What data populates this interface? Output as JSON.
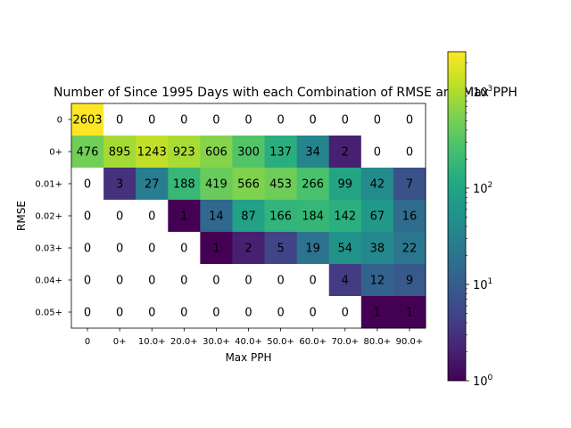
{
  "chart_data": {
    "type": "heatmap",
    "title": "Number of Since 1995 Days with each Combination of RMSE and Max PPH",
    "xlabel": "Max PPH",
    "ylabel": "RMSE",
    "x_categories": [
      "0",
      "0+",
      "10.0+",
      "20.0+",
      "30.0+",
      "40.0+",
      "50.0+",
      "60.0+",
      "70.0+",
      "80.0+",
      "90.0+"
    ],
    "y_categories": [
      "0",
      "0+",
      "0.01+",
      "0.02+",
      "0.03+",
      "0.04+",
      "0.05+"
    ],
    "values": [
      [
        2603,
        0,
        0,
        0,
        0,
        0,
        0,
        0,
        0,
        0,
        0
      ],
      [
        476,
        895,
        1243,
        923,
        606,
        300,
        137,
        34,
        2,
        0,
        0
      ],
      [
        0,
        3,
        27,
        188,
        419,
        566,
        453,
        266,
        99,
        42,
        7
      ],
      [
        0,
        0,
        0,
        1,
        14,
        87,
        166,
        184,
        142,
        67,
        16
      ],
      [
        0,
        0,
        0,
        0,
        1,
        2,
        5,
        19,
        54,
        38,
        22
      ],
      [
        0,
        0,
        0,
        0,
        0,
        0,
        0,
        0,
        4,
        12,
        9
      ],
      [
        0,
        0,
        0,
        0,
        0,
        0,
        0,
        0,
        0,
        1,
        1
      ]
    ],
    "colorbar": {
      "scale": "log",
      "range": [
        1,
        2603
      ],
      "ticks": [
        {
          "base": "10",
          "exp": "0",
          "value": 1
        },
        {
          "base": "10",
          "exp": "1",
          "value": 10
        },
        {
          "base": "10",
          "exp": "2",
          "value": 100
        },
        {
          "base": "10",
          "exp": "3",
          "value": 1000
        }
      ],
      "colormap": "viridis"
    },
    "zero_cells": "white",
    "grid": false
  }
}
